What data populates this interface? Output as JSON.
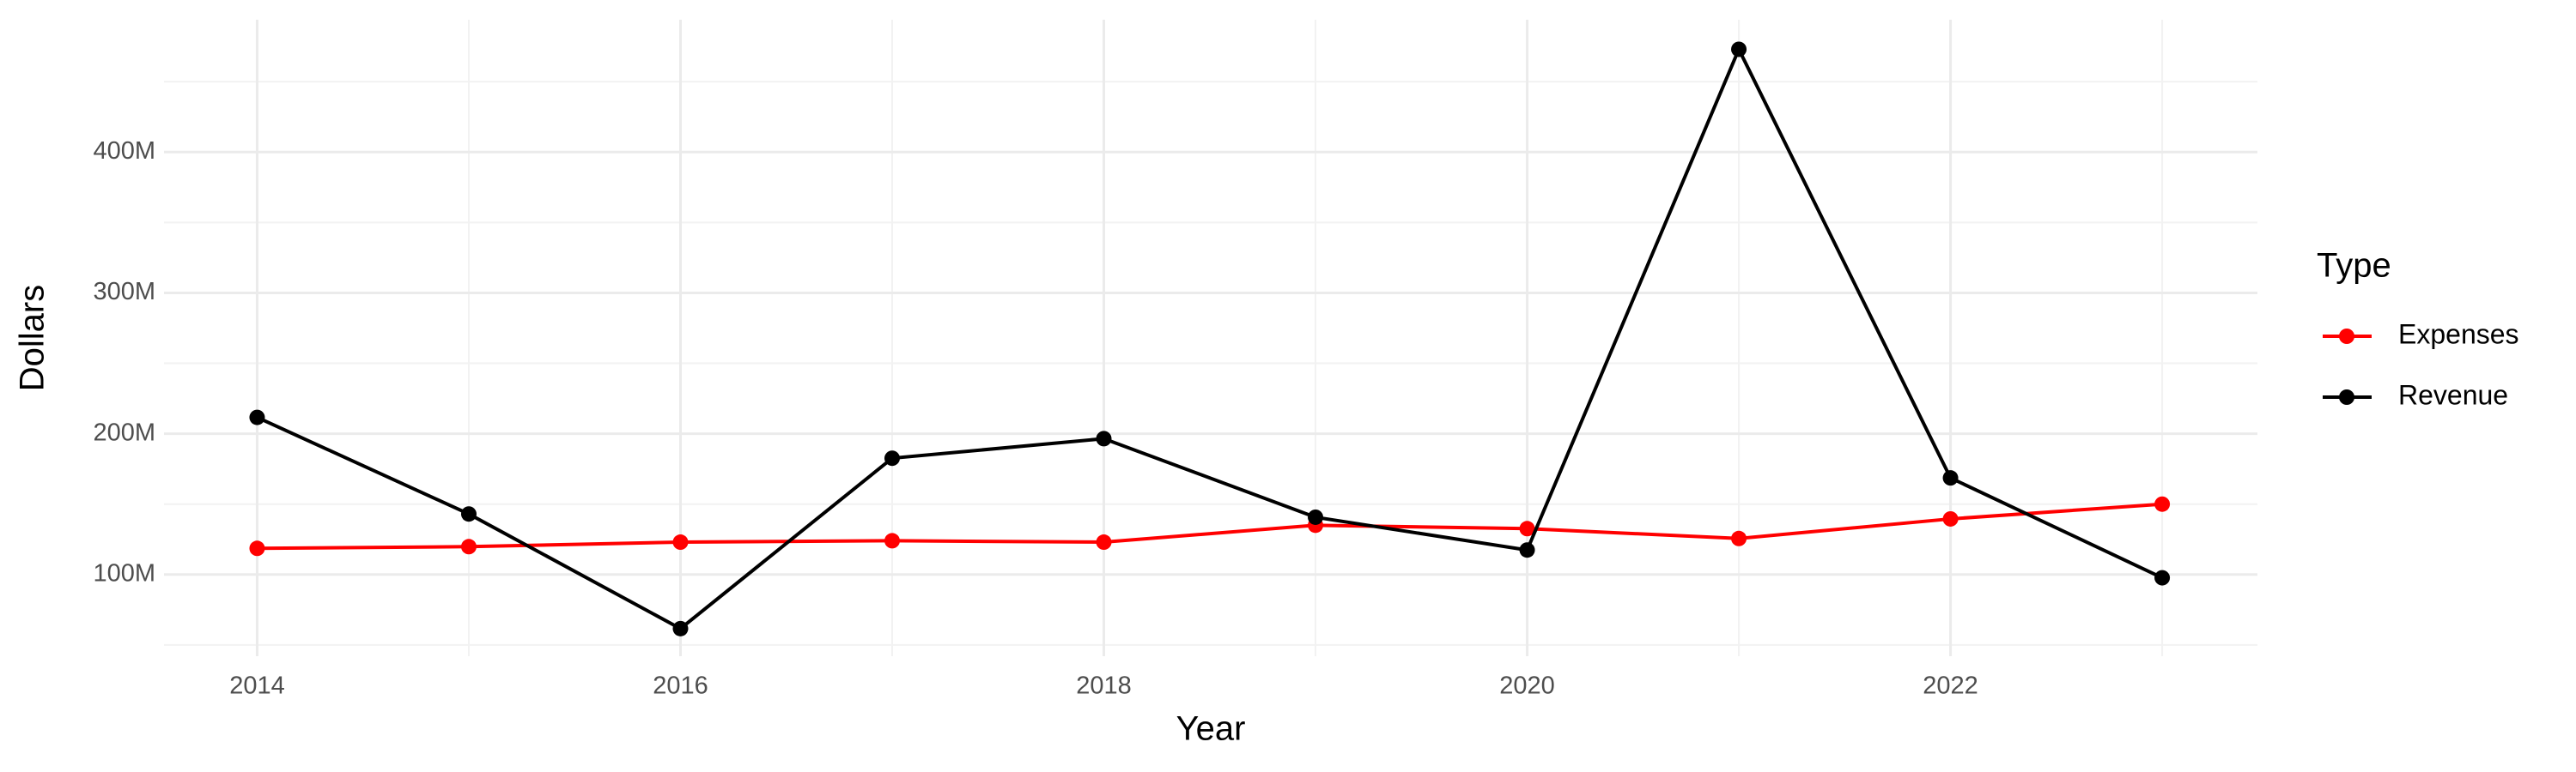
{
  "chart_data": {
    "type": "line",
    "x_label": "Year",
    "y_label": "Dollars",
    "legend_title": "Type",
    "x": [
      2014,
      2015,
      2016,
      2017,
      2018,
      2019,
      2020,
      2021,
      2022,
      2023
    ],
    "series": [
      {
        "name": "Expenses",
        "color": "#ff0000",
        "values": [
          118600000,
          119800000,
          123000000,
          124000000,
          123000000,
          135000000,
          132600000,
          125600000,
          139500000,
          150000000
        ]
      },
      {
        "name": "Revenue",
        "color": "#000000",
        "values": [
          211600000,
          143000000,
          61600000,
          182600000,
          196500000,
          140700000,
          117400000,
          473000000,
          168600000,
          97700000
        ]
      }
    ],
    "xlim": [
      2013.56,
      2023.45
    ],
    "xticks": [
      2014,
      2016,
      2018,
      2020,
      2022
    ],
    "ylim": [
      42000000,
      494000000
    ],
    "yticks": [
      {
        "value": 100000000,
        "label": "100M"
      },
      {
        "value": 200000000,
        "label": "200M"
      },
      {
        "value": 300000000,
        "label": "300M"
      },
      {
        "value": 400000000,
        "label": "400M"
      }
    ],
    "grid": true,
    "minor_grid": true,
    "legend_position": "right"
  }
}
